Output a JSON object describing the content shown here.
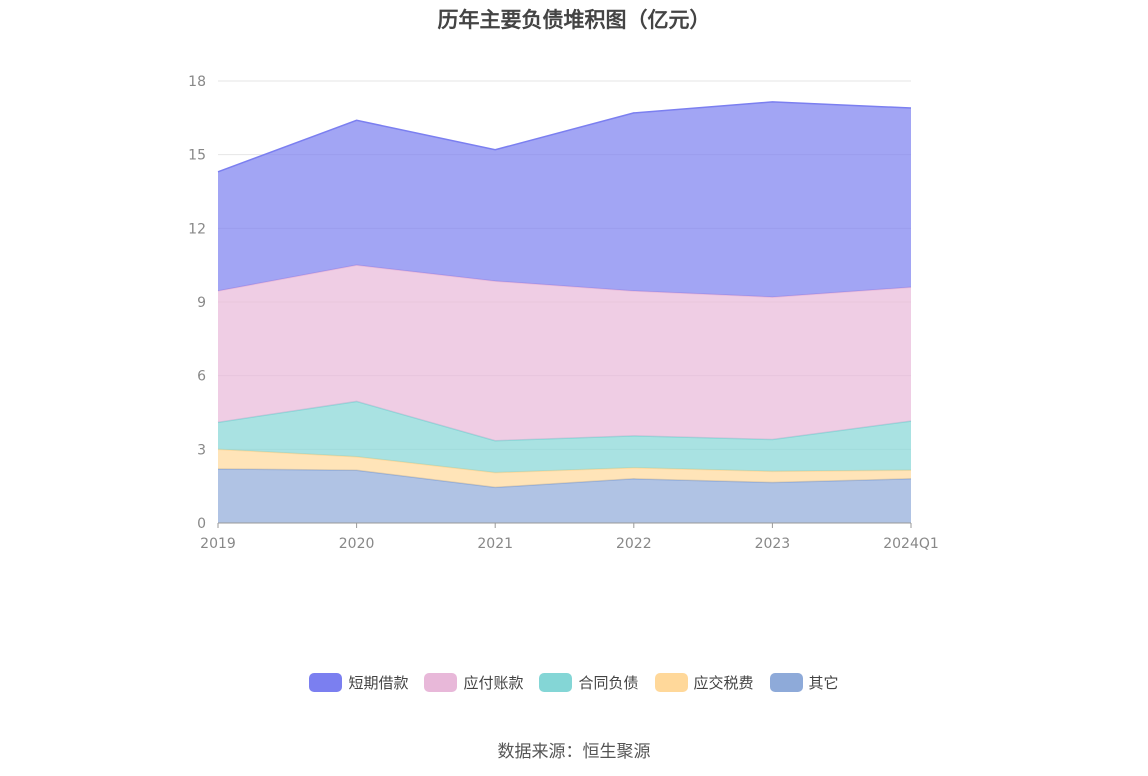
{
  "chart_data": {
    "type": "area",
    "stacked": true,
    "title": "历年主要负债堆积图（亿元）",
    "categories": [
      "2019",
      "2020",
      "2021",
      "2022",
      "2023",
      "2024Q1"
    ],
    "ylim": [
      0,
      18
    ],
    "yticks": [
      "0",
      "3",
      "6",
      "9",
      "12",
      "15",
      "18"
    ],
    "grid": true,
    "legend_position": "bottom",
    "series": [
      {
        "name": "其它",
        "color": "#8eaad9",
        "values": [
          2.2,
          2.15,
          1.45,
          1.8,
          1.65,
          1.8
        ]
      },
      {
        "name": "应交税费",
        "color": "#ffd89a",
        "values": [
          0.8,
          0.55,
          0.6,
          0.45,
          0.45,
          0.35
        ]
      },
      {
        "name": "合同负债",
        "color": "#84d6d6",
        "values": [
          1.1,
          2.25,
          1.3,
          1.3,
          1.3,
          2.0
        ]
      },
      {
        "name": "应付账款",
        "color": "#e8b8d9",
        "values": [
          5.35,
          5.55,
          6.5,
          5.9,
          5.8,
          5.45
        ]
      },
      {
        "name": "短期借款",
        "color": "#7b7ff0",
        "values": [
          4.85,
          5.9,
          5.35,
          7.25,
          7.95,
          7.3
        ]
      }
    ],
    "legend_order": [
      "短期借款",
      "应付账款",
      "合同负债",
      "应交税费",
      "其它"
    ]
  },
  "source": "数据来源：恒生聚源"
}
